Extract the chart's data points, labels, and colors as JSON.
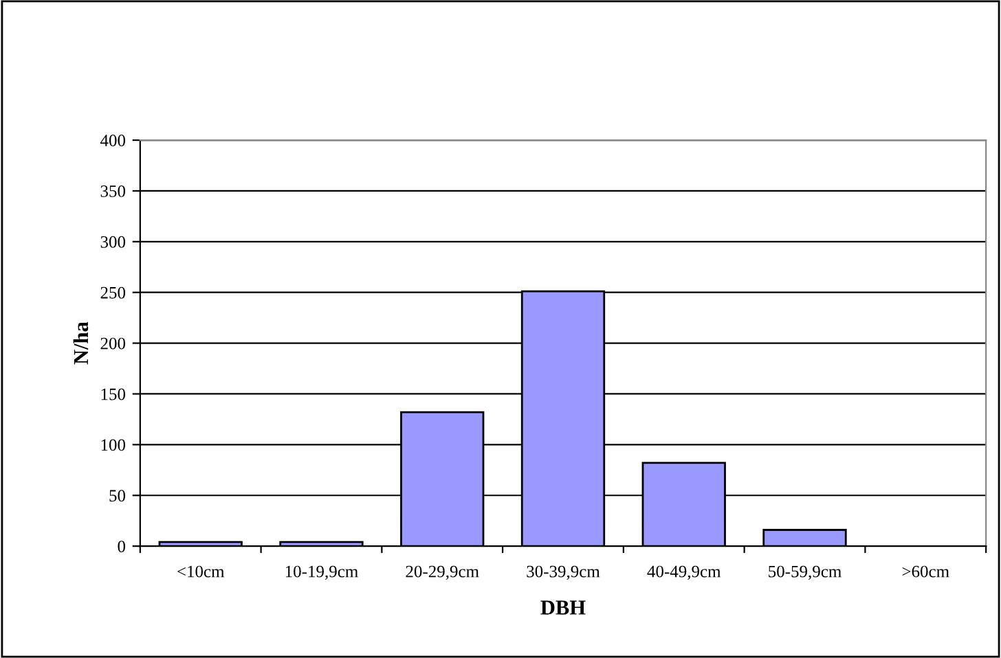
{
  "chart_data": {
    "type": "bar",
    "xlabel": "DBH",
    "ylabel": "N/ha",
    "categories": [
      "<10cm",
      "10-19,9cm",
      "20-29,9cm",
      "30-39,9cm",
      "40-49,9cm",
      "50-59,9cm",
      ">60cm"
    ],
    "values": [
      4,
      4,
      132,
      251,
      82,
      16,
      0
    ],
    "color": "#9999ff",
    "ylim": [
      0,
      400
    ],
    "yticks": [
      0,
      50,
      100,
      150,
      200,
      250,
      300,
      350,
      400
    ],
    "grid": "y",
    "legend": false
  }
}
